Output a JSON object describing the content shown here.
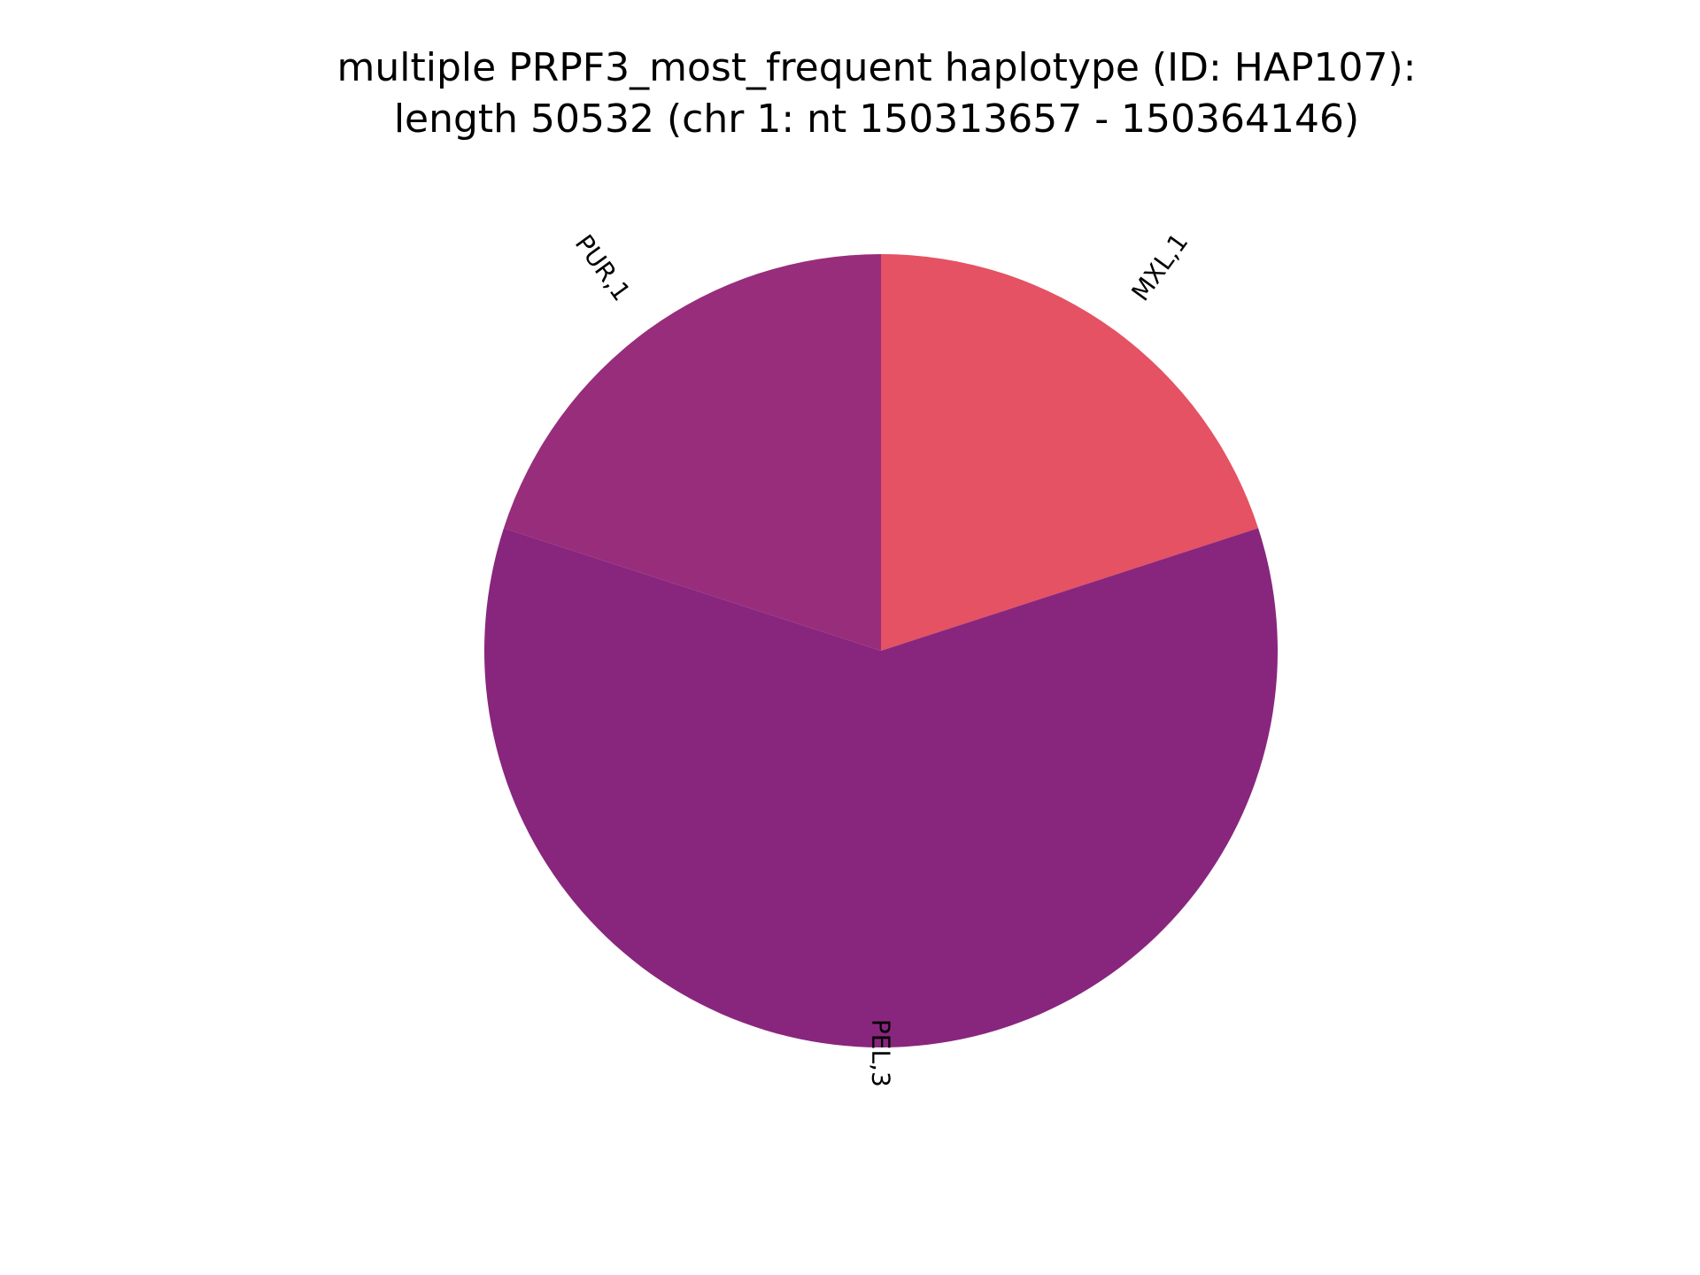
{
  "chart_data": {
    "type": "pie",
    "title": "multiple PRPF3_most_frequent haplotype (ID: HAP107):\nlength 50532 (chr 1: nt 150313657 - 150364146)",
    "title_lines": [
      "multiple PRPF3_most_frequent haplotype (ID: HAP107):",
      "length 50532 (chr 1: nt 150313657 - 150364146)"
    ],
    "start_angle_deg": 90,
    "direction": "clockwise",
    "slices": [
      {
        "label": "MXL,1",
        "category": "MXL",
        "value": 1,
        "color": "#e45263"
      },
      {
        "label": "PEL,3",
        "category": "PEL",
        "value": 3,
        "color": "#88267d"
      },
      {
        "label": "PUR,1",
        "category": "PUR",
        "value": 1,
        "color": "#982d7c"
      }
    ]
  }
}
